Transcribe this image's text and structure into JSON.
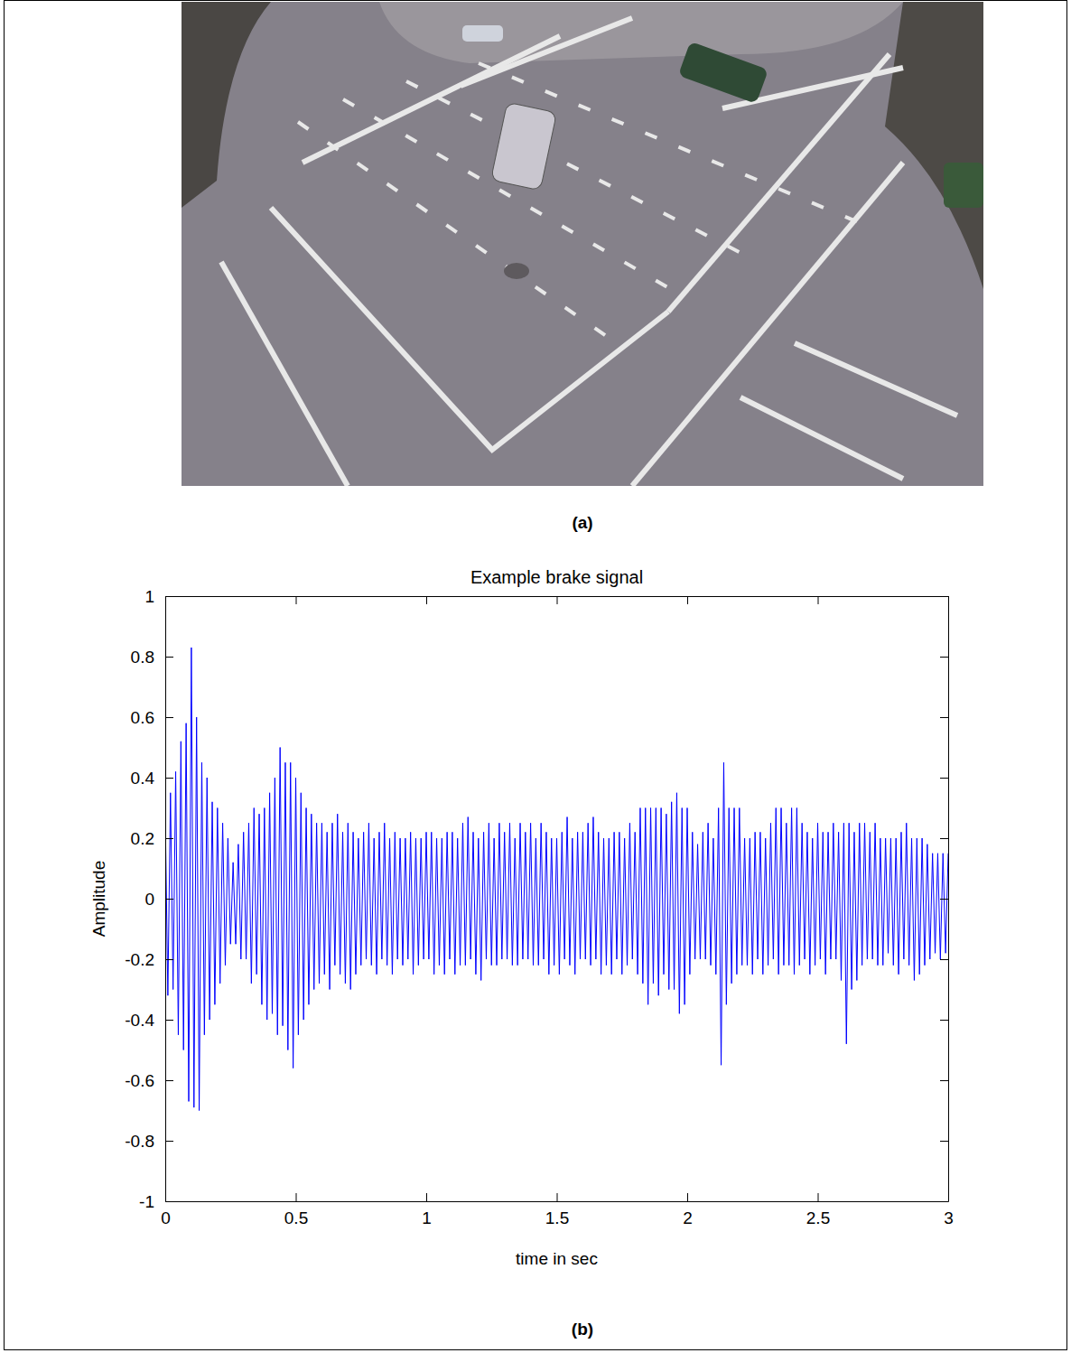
{
  "chart_data": {
    "type": "line",
    "title": "Example brake signal",
    "x_label": "time in sec",
    "y_label": "Amplitude",
    "xlim": [
      0,
      3
    ],
    "ylim": [
      -1,
      1
    ],
    "xticks": [
      0,
      0.5,
      1,
      1.5,
      2,
      2.5,
      3
    ],
    "yticks": [
      -1,
      -0.8,
      -0.6,
      -0.4,
      -0.2,
      0,
      0.2,
      0.4,
      0.6,
      0.8,
      1
    ],
    "grid": false,
    "x": [
      0,
      0.01,
      0.02,
      0.03,
      0.04,
      0.05,
      0.06,
      0.07,
      0.08,
      0.09,
      0.1,
      0.11,
      0.12,
      0.13,
      0.14,
      0.15,
      0.16,
      0.17,
      0.18,
      0.19,
      0.2,
      0.21,
      0.22,
      0.23,
      0.24,
      0.25,
      0.26,
      0.27,
      0.28,
      0.29,
      0.3,
      0.31,
      0.32,
      0.33,
      0.34,
      0.35,
      0.36,
      0.37,
      0.38,
      0.39,
      0.4,
      0.41,
      0.42,
      0.43,
      0.44,
      0.45,
      0.46,
      0.47,
      0.48,
      0.49,
      0.5,
      0.51,
      0.52,
      0.53,
      0.54,
      0.55,
      0.56,
      0.57,
      0.58,
      0.59,
      0.6,
      0.61,
      0.62,
      0.63,
      0.64,
      0.65,
      0.66,
      0.67,
      0.68,
      0.69,
      0.7,
      0.71,
      0.72,
      0.73,
      0.74,
      0.75,
      0.76,
      0.77,
      0.78,
      0.79,
      0.8,
      0.81,
      0.82,
      0.83,
      0.84,
      0.85,
      0.86,
      0.87,
      0.88,
      0.89,
      0.9,
      0.91,
      0.92,
      0.93,
      0.94,
      0.95,
      0.96,
      0.97,
      0.98,
      0.99,
      1,
      1.01,
      1.02,
      1.03,
      1.04,
      1.05,
      1.06,
      1.07,
      1.08,
      1.09,
      1.1,
      1.11,
      1.12,
      1.13,
      1.14,
      1.15,
      1.16,
      1.17,
      1.18,
      1.19,
      1.2,
      1.21,
      1.22,
      1.23,
      1.24,
      1.25,
      1.26,
      1.27,
      1.28,
      1.29,
      1.3,
      1.31,
      1.32,
      1.33,
      1.34,
      1.35,
      1.36,
      1.37,
      1.38,
      1.39,
      1.4,
      1.41,
      1.42,
      1.43,
      1.44,
      1.45,
      1.46,
      1.47,
      1.48,
      1.49,
      1.5,
      1.51,
      1.52,
      1.53,
      1.54,
      1.55,
      1.56,
      1.57,
      1.58,
      1.59,
      1.6,
      1.61,
      1.62,
      1.63,
      1.64,
      1.65,
      1.66,
      1.67,
      1.68,
      1.69,
      1.7,
      1.71,
      1.72,
      1.73,
      1.74,
      1.75,
      1.76,
      1.77,
      1.78,
      1.79,
      1.8,
      1.81,
      1.82,
      1.83,
      1.84,
      1.85,
      1.86,
      1.87,
      1.88,
      1.89,
      1.9,
      1.91,
      1.92,
      1.93,
      1.94,
      1.95,
      1.96,
      1.97,
      1.98,
      1.99,
      2,
      2.01,
      2.02,
      2.03,
      2.04,
      2.05,
      2.06,
      2.07,
      2.08,
      2.09,
      2.1,
      2.11,
      2.12,
      2.13,
      2.14,
      2.15,
      2.16,
      2.17,
      2.18,
      2.19,
      2.2,
      2.21,
      2.22,
      2.23,
      2.24,
      2.25,
      2.26,
      2.27,
      2.28,
      2.29,
      2.3,
      2.31,
      2.32,
      2.33,
      2.34,
      2.35,
      2.36,
      2.37,
      2.38,
      2.39,
      2.4,
      2.41,
      2.42,
      2.43,
      2.44,
      2.45,
      2.46,
      2.47,
      2.48,
      2.49,
      2.5,
      2.51,
      2.52,
      2.53,
      2.54,
      2.55,
      2.56,
      2.57,
      2.58,
      2.59,
      2.6,
      2.61,
      2.62,
      2.63,
      2.64,
      2.65,
      2.66,
      2.67,
      2.68,
      2.69,
      2.7,
      2.71,
      2.72,
      2.73,
      2.74,
      2.75,
      2.76,
      2.77,
      2.78,
      2.79,
      2.8,
      2.81,
      2.82,
      2.83,
      2.84,
      2.85,
      2.86,
      2.87,
      2.88,
      2.89,
      2.9,
      2.91,
      2.92,
      2.93,
      2.94,
      2.95,
      2.96,
      2.97,
      2.98,
      2.99,
      3
    ],
    "series": [
      {
        "color": "#0000ff",
        "values": [
          0.28,
          -0.32,
          0.35,
          -0.3,
          0.42,
          -0.45,
          0.52,
          -0.5,
          0.58,
          -0.67,
          0.83,
          -0.69,
          0.6,
          -0.7,
          0.45,
          -0.45,
          0.4,
          -0.4,
          0.32,
          -0.35,
          0.3,
          -0.28,
          0.25,
          -0.22,
          0.2,
          -0.15,
          0.12,
          -0.15,
          0.18,
          -0.2,
          0.22,
          -0.2,
          0.25,
          -0.28,
          0.3,
          -0.25,
          0.28,
          -0.35,
          0.3,
          -0.4,
          0.35,
          -0.38,
          0.4,
          -0.45,
          0.5,
          -0.42,
          0.45,
          -0.5,
          0.45,
          -0.56,
          0.4,
          -0.45,
          0.35,
          -0.4,
          0.3,
          -0.35,
          0.28,
          -0.3,
          0.25,
          -0.28,
          0.25,
          -0.25,
          0.22,
          -0.3,
          0.25,
          -0.22,
          0.28,
          -0.25,
          0.22,
          -0.28,
          0.25,
          -0.3,
          0.22,
          -0.25,
          0.2,
          -0.22,
          0.22,
          -0.2,
          0.25,
          -0.22,
          0.2,
          -0.25,
          0.22,
          -0.2,
          0.25,
          -0.22,
          0.2,
          -0.25,
          0.22,
          -0.2,
          0.2,
          -0.22,
          0.2,
          -0.2,
          0.22,
          -0.25,
          0.2,
          -0.22,
          0.2,
          -0.2,
          0.22,
          -0.2,
          0.22,
          -0.25,
          0.2,
          -0.22,
          0.2,
          -0.25,
          0.22,
          -0.2,
          0.22,
          -0.25,
          0.2,
          -0.22,
          0.25,
          -0.22,
          0.27,
          -0.2,
          0.22,
          -0.25,
          0.2,
          -0.27,
          0.22,
          -0.2,
          0.25,
          -0.22,
          0.2,
          -0.22,
          0.25,
          -0.2,
          0.22,
          -0.2,
          0.25,
          -0.22,
          0.2,
          -0.22,
          0.25,
          -0.2,
          0.22,
          -0.2,
          0.25,
          -0.22,
          0.2,
          -0.22,
          0.25,
          -0.2,
          0.22,
          -0.25,
          0.2,
          -0.22,
          0.2,
          -0.25,
          0.22,
          -0.2,
          0.27,
          -0.22,
          0.2,
          -0.25,
          0.22,
          -0.2,
          0.22,
          -0.2,
          0.25,
          -0.22,
          0.27,
          -0.2,
          0.22,
          -0.25,
          0.2,
          -0.22,
          0.2,
          -0.25,
          0.22,
          -0.2,
          0.22,
          -0.25,
          0.2,
          -0.22,
          0.25,
          -0.2,
          0.22,
          -0.25,
          0.3,
          -0.28,
          0.3,
          -0.35,
          0.3,
          -0.28,
          0.3,
          -0.32,
          0.3,
          -0.25,
          0.28,
          -0.3,
          0.32,
          -0.3,
          0.35,
          -0.38,
          0.3,
          -0.35,
          0.3,
          -0.25,
          0.22,
          -0.2,
          0.18,
          -0.2,
          0.22,
          -0.2,
          0.25,
          -0.22,
          0.2,
          -0.25,
          0.3,
          -0.55,
          0.45,
          -0.35,
          0.3,
          -0.28,
          0.3,
          -0.25,
          0.3,
          -0.22,
          0.2,
          -0.22,
          0.2,
          -0.25,
          0.22,
          -0.2,
          0.22,
          -0.25,
          0.2,
          -0.22,
          0.25,
          -0.2,
          0.3,
          -0.25,
          0.3,
          -0.22,
          0.25,
          -0.22,
          0.3,
          -0.25,
          0.3,
          -0.22,
          0.25,
          -0.2,
          0.22,
          -0.25,
          0.2,
          -0.22,
          0.25,
          -0.2,
          0.22,
          -0.25,
          0.22,
          -0.2,
          0.25,
          -0.2,
          0.22,
          -0.27,
          0.25,
          -0.48,
          0.25,
          -0.3,
          0.22,
          -0.27,
          0.25,
          -0.22,
          0.25,
          -0.2,
          0.22,
          -0.2,
          0.25,
          -0.22,
          0.2,
          -0.22,
          0.2,
          -0.18,
          0.2,
          -0.22,
          0.2,
          -0.25,
          0.22,
          -0.2,
          0.25,
          -0.22,
          0.2,
          -0.27,
          0.2,
          -0.25,
          0.2,
          -0.22,
          0.18,
          -0.2,
          0.15,
          -0.18,
          0.15,
          -0.2,
          0.15,
          -0.18,
          0.15
        ]
      }
    ]
  },
  "panel_labels": [
    "(a)",
    "(b)"
  ]
}
